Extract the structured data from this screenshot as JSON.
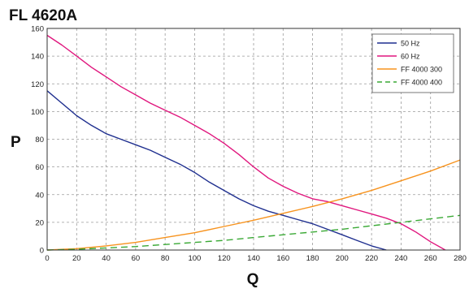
{
  "chart_data": {
    "type": "line",
    "title": "FL 4620A",
    "xlabel": "Q",
    "ylabel": "P",
    "xlim": [
      0,
      280
    ],
    "ylim": [
      0,
      160
    ],
    "x_ticks": [
      0,
      20,
      40,
      60,
      80,
      100,
      120,
      140,
      160,
      180,
      200,
      220,
      240,
      260,
      280
    ],
    "y_ticks": [
      0,
      20,
      40,
      60,
      80,
      100,
      120,
      140,
      160
    ],
    "grid": "dashed",
    "legend_position": "top-right",
    "series": [
      {
        "name": "50 Hz",
        "color": "#1f2f8f",
        "style": "solid",
        "x": [
          0,
          10,
          20,
          30,
          40,
          50,
          60,
          70,
          80,
          90,
          100,
          110,
          120,
          130,
          140,
          150,
          160,
          170,
          180,
          190,
          200,
          210,
          220,
          230
        ],
        "y": [
          115,
          106,
          97,
          90,
          84,
          80,
          76,
          72,
          67,
          62,
          56,
          49,
          43,
          37,
          32,
          28,
          25,
          22,
          19,
          15,
          11,
          7,
          3,
          0
        ]
      },
      {
        "name": "60 Hz",
        "color": "#e0177e",
        "style": "solid",
        "x": [
          0,
          10,
          20,
          30,
          40,
          50,
          60,
          70,
          80,
          90,
          100,
          110,
          120,
          130,
          140,
          150,
          160,
          170,
          180,
          190,
          200,
          210,
          220,
          230,
          240,
          250,
          260,
          270
        ],
        "y": [
          155,
          148,
          140,
          132,
          125,
          118,
          112,
          106,
          101,
          96,
          90,
          84,
          77,
          69,
          60,
          52,
          46,
          41,
          37,
          35,
          32,
          29,
          26,
          23,
          19,
          13,
          6,
          0
        ]
      },
      {
        "name": "FF 4000 300",
        "color": "#f7931e",
        "style": "solid",
        "x": [
          0,
          20,
          40,
          60,
          80,
          100,
          120,
          140,
          160,
          180,
          200,
          220,
          240,
          260,
          280
        ],
        "y": [
          0,
          1,
          3,
          5.5,
          9,
          12.5,
          17,
          21.5,
          26.5,
          31.5,
          37,
          43,
          50,
          57,
          65
        ]
      },
      {
        "name": "FF 4000 400",
        "color": "#3aa935",
        "style": "dashed",
        "x": [
          0,
          20,
          40,
          60,
          80,
          100,
          120,
          140,
          160,
          180,
          200,
          220,
          240,
          260,
          280
        ],
        "y": [
          0,
          0.5,
          1.5,
          2.5,
          4,
          5.5,
          7,
          9,
          11,
          13,
          15,
          17.5,
          20,
          22.5,
          25
        ]
      }
    ]
  }
}
